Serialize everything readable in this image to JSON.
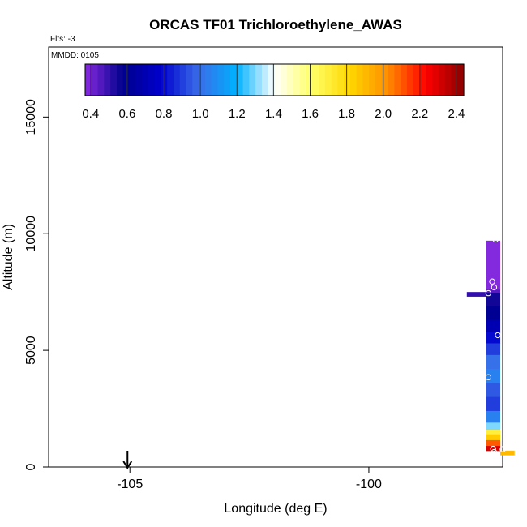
{
  "chart_data": {
    "type": "scatter",
    "title": "ORCAS TF01 Trichloroethylene_AWAS",
    "flts_label": "Flts: -3",
    "mmdd_label": "MMDD: 0105",
    "xlabel": "Longitude (deg E)",
    "ylabel": "Altitude (m)",
    "xlim": [
      -106.7,
      -97.2
    ],
    "ylim": [
      0,
      18000
    ],
    "x_ticks": [
      -105,
      -100
    ],
    "x_tick_labels": [
      "-105",
      "-100"
    ],
    "y_ticks": [
      0,
      5000,
      10000,
      15000
    ],
    "y_tick_labels": [
      "0",
      "5000",
      "10000",
      "15000"
    ],
    "colorbar": {
      "range": [
        0.37,
        2.44
      ],
      "ticks": [
        0.4,
        0.6,
        0.8,
        1.0,
        1.2,
        1.4,
        1.6,
        1.8,
        2.0,
        2.2,
        2.4
      ],
      "tick_labels": [
        "0.4",
        "0.6",
        "0.8",
        "1.0",
        "1.2",
        "1.4",
        "1.6",
        "1.8",
        "2.0",
        "2.2",
        "2.4"
      ],
      "colors": [
        "#8a2be2",
        "#00008b",
        "#0000cd",
        "#3a6ee8",
        "#00b0ff",
        "#ffffff",
        "#ffff66",
        "#ffd700",
        "#ff8c00",
        "#ff0000",
        "#8b0000"
      ]
    },
    "marker": {
      "x": -105.05,
      "symbol": "down-arrow"
    },
    "profile": {
      "x": [
        -97.55,
        -97.25
      ],
      "segments": [
        {
          "y0": 9700,
          "y1": 7600,
          "value": 0.38
        },
        {
          "y0": 7600,
          "y1": 7450,
          "value": 0.45
        },
        {
          "y0": 7450,
          "y1": 6900,
          "value": 0.55
        },
        {
          "y0": 6900,
          "y1": 6300,
          "value": 0.6
        },
        {
          "y0": 6300,
          "y1": 5800,
          "value": 0.7
        },
        {
          "y0": 5800,
          "y1": 5300,
          "value": 0.8
        },
        {
          "y0": 5300,
          "y1": 4800,
          "value": 0.9
        },
        {
          "y0": 4800,
          "y1": 4200,
          "value": 1.0
        },
        {
          "y0": 4200,
          "y1": 3600,
          "value": 1.05
        },
        {
          "y0": 3600,
          "y1": 3000,
          "value": 0.95
        },
        {
          "y0": 3000,
          "y1": 2400,
          "value": 0.9
        },
        {
          "y0": 2400,
          "y1": 1900,
          "value": 1.05
        },
        {
          "y0": 1900,
          "y1": 1600,
          "value": 1.3
        },
        {
          "y0": 1600,
          "y1": 1400,
          "value": 1.7
        },
        {
          "y0": 1400,
          "y1": 1150,
          "value": 1.85
        },
        {
          "y0": 1150,
          "y1": 900,
          "value": 2.1
        },
        {
          "y0": 900,
          "y1": 700,
          "value": 2.3
        }
      ],
      "extra": [
        {
          "x0": -97.95,
          "x1": -97.55,
          "y0": 7500,
          "y1": 7300,
          "value": 0.5
        },
        {
          "x0": -97.25,
          "x1": -96.95,
          "y0": 700,
          "y1": 500,
          "value": 1.9
        }
      ]
    },
    "points": [
      {
        "x": -97.35,
        "y": 9750
      },
      {
        "x": -97.42,
        "y": 7950
      },
      {
        "x": -97.38,
        "y": 7700
      },
      {
        "x": -97.5,
        "y": 7450
      },
      {
        "x": -97.3,
        "y": 5650
      },
      {
        "x": -97.5,
        "y": 3850
      },
      {
        "x": -97.4,
        "y": 780
      },
      {
        "x": -97.2,
        "y": 760
      },
      {
        "x": -97.38,
        "y": 640
      }
    ]
  }
}
